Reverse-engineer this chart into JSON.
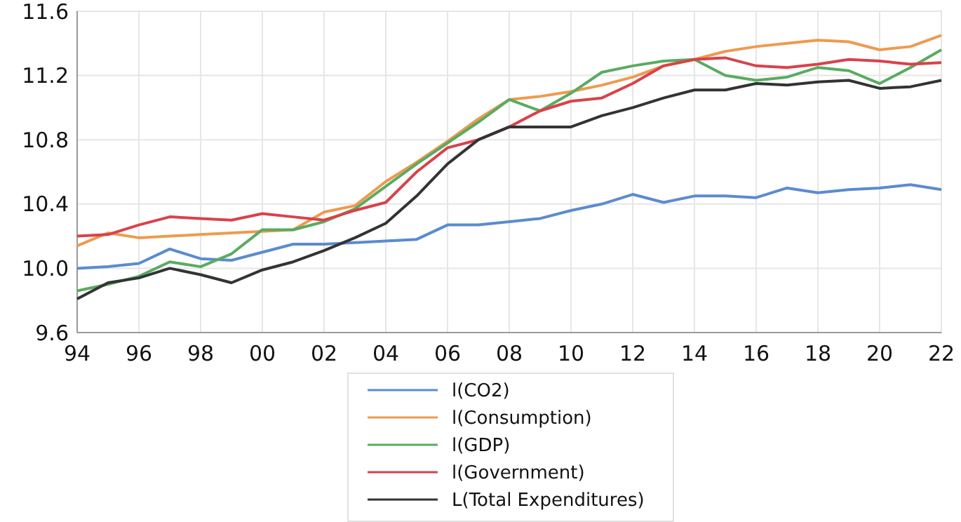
{
  "chart_data": {
    "type": "line",
    "x": [
      1994,
      1995,
      1996,
      1997,
      1998,
      1999,
      2000,
      2001,
      2002,
      2003,
      2004,
      2005,
      2006,
      2007,
      2008,
      2009,
      2010,
      2011,
      2012,
      2013,
      2014,
      2015,
      2016,
      2017,
      2018,
      2019,
      2020,
      2021,
      2022
    ],
    "xlim": [
      1994,
      2022
    ],
    "xticks": [
      {
        "value": 1994,
        "label": "94"
      },
      {
        "value": 1996,
        "label": "96"
      },
      {
        "value": 1998,
        "label": "98"
      },
      {
        "value": 2000,
        "label": "00"
      },
      {
        "value": 2002,
        "label": "02"
      },
      {
        "value": 2004,
        "label": "04"
      },
      {
        "value": 2006,
        "label": "06"
      },
      {
        "value": 2008,
        "label": "08"
      },
      {
        "value": 2010,
        "label": "10"
      },
      {
        "value": 2012,
        "label": "12"
      },
      {
        "value": 2014,
        "label": "14"
      },
      {
        "value": 2016,
        "label": "16"
      },
      {
        "value": 2018,
        "label": "18"
      },
      {
        "value": 2020,
        "label": "20"
      },
      {
        "value": 2022,
        "label": "22"
      }
    ],
    "ylim": [
      9.6,
      11.6
    ],
    "yticks": [
      9.6,
      {
        "value": 10,
        "label": "10.0"
      },
      10.4,
      10.8,
      11.2,
      11.6
    ],
    "grid": true,
    "legend": "bottom",
    "marker": "none",
    "line_style": "solid",
    "series": [
      {
        "name": "l(CO2)",
        "color": "#5b8bd0",
        "values": [
          10.0,
          10.01,
          10.03,
          10.12,
          10.06,
          10.05,
          10.1,
          10.15,
          10.15,
          10.16,
          10.17,
          10.18,
          10.27,
          10.27,
          10.29,
          10.31,
          10.36,
          10.4,
          10.46,
          10.41,
          10.45,
          10.45,
          10.44,
          10.5,
          10.47,
          10.49,
          10.5,
          10.52,
          10.49
        ]
      },
      {
        "name": "l(Consumption)",
        "color": "#ed9b4f",
        "values": [
          10.14,
          10.22,
          10.19,
          10.2,
          10.21,
          10.22,
          10.23,
          10.24,
          10.35,
          10.39,
          10.54,
          10.66,
          10.79,
          10.93,
          11.05,
          11.07,
          11.1,
          11.14,
          11.19,
          11.26,
          11.3,
          11.35,
          11.38,
          11.4,
          11.42,
          11.41,
          11.36,
          11.38,
          11.45
        ]
      },
      {
        "name": "l(GDP)",
        "color": "#5aab61",
        "values": [
          9.86,
          9.9,
          9.95,
          10.04,
          10.01,
          10.09,
          10.24,
          10.24,
          10.29,
          10.37,
          10.51,
          10.65,
          10.78,
          10.91,
          11.05,
          10.98,
          11.09,
          11.22,
          11.26,
          11.29,
          11.3,
          11.2,
          11.17,
          11.19,
          11.25,
          11.23,
          11.15,
          11.25,
          11.36
        ]
      },
      {
        "name": "l(Government)",
        "color": "#d9424a",
        "values": [
          10.2,
          10.21,
          10.27,
          10.32,
          10.31,
          10.3,
          10.34,
          10.32,
          10.3,
          10.36,
          10.41,
          10.6,
          10.75,
          10.8,
          10.88,
          10.98,
          11.04,
          11.06,
          11.15,
          11.26,
          11.3,
          11.31,
          11.26,
          11.25,
          11.27,
          11.3,
          11.29,
          11.27,
          11.28
        ]
      },
      {
        "name": "L(Total Expenditures)",
        "color": "#333333",
        "values": [
          9.81,
          9.91,
          9.94,
          10.0,
          9.96,
          9.91,
          9.99,
          10.04,
          10.11,
          10.19,
          10.28,
          10.45,
          10.65,
          10.8,
          10.88,
          10.88,
          10.88,
          10.95,
          11.0,
          11.06,
          11.11,
          11.11,
          11.15,
          11.14,
          11.16,
          11.17,
          11.12,
          11.13,
          11.17
        ]
      }
    ]
  }
}
